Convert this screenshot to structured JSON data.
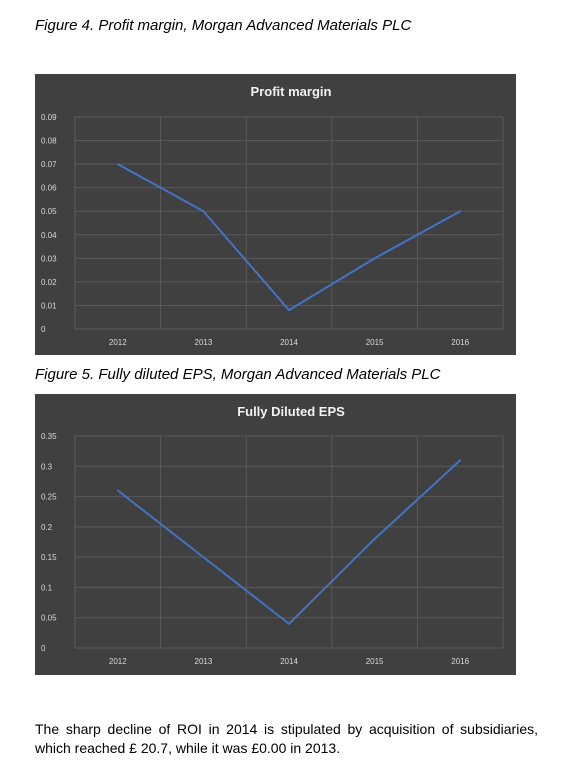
{
  "captions": {
    "figure4": "Figure 4. Profit margin, Morgan Advanced Materials PLC",
    "figure5": "Figure 5. Fully diluted EPS, Morgan Advanced Materials PLC"
  },
  "paragraph": "The sharp decline of ROI in 2014 is stipulated by acquisition of subsidiaries, which reached £ 20.7, while it was £0.00 in 2013.",
  "colors": {
    "chart_background": "#404040",
    "gridline": "#5a5a5a",
    "line": "#4472c4",
    "title": "#f2f2f2",
    "tick_label": "#d9d9d9"
  },
  "chart_data": [
    {
      "type": "line",
      "title": "Profit margin",
      "categories": [
        "2012",
        "2013",
        "2014",
        "2015",
        "2016"
      ],
      "values": [
        0.07,
        0.05,
        0.008,
        0.03,
        0.05
      ],
      "yticks": [
        "0",
        "0.01",
        "0.02",
        "0.03",
        "0.04",
        "0.05",
        "0.06",
        "0.07",
        "0.08",
        "0.09"
      ],
      "ylim": [
        0,
        0.09
      ],
      "xlabel": "",
      "ylabel": "",
      "grid": true,
      "legend": "none"
    },
    {
      "type": "line",
      "title": "Fully Diluted EPS",
      "categories": [
        "2012",
        "2013",
        "2014",
        "2015",
        "2016"
      ],
      "values": [
        0.26,
        0.15,
        0.04,
        0.18,
        0.31
      ],
      "yticks": [
        "0",
        "0.05",
        "0.1",
        "0.15",
        "0.2",
        "0.25",
        "0.3",
        "0.35"
      ],
      "ylim": [
        0,
        0.35
      ],
      "xlabel": "",
      "ylabel": "",
      "grid": true,
      "legend": "none"
    }
  ]
}
